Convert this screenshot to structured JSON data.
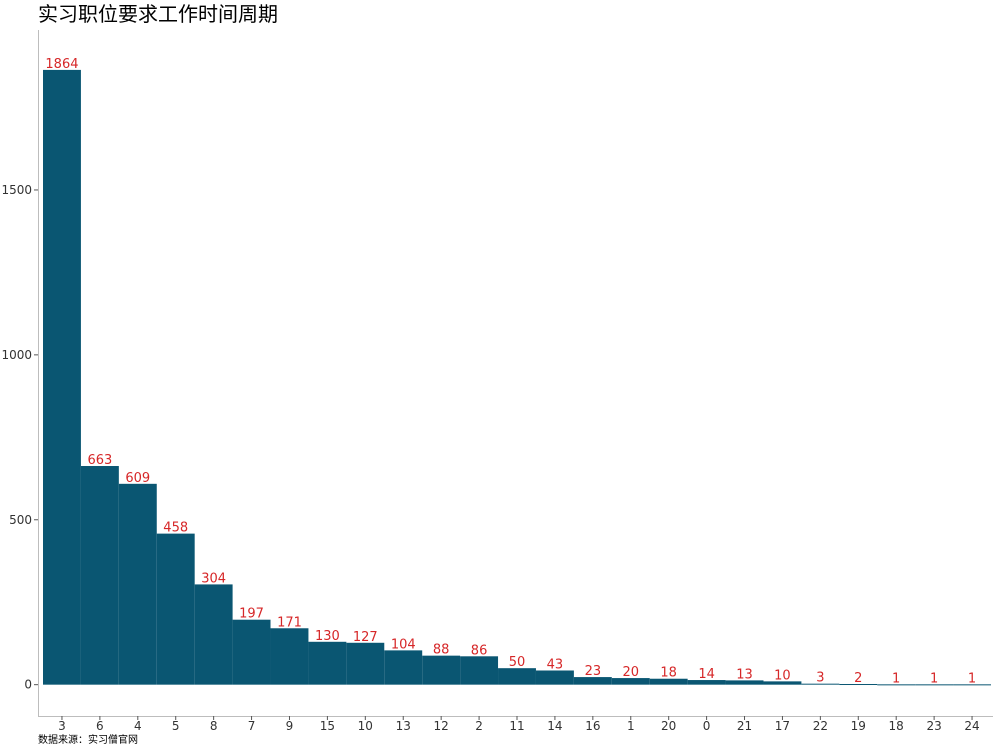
{
  "chart_data": {
    "type": "bar",
    "title": "实习职位要求工作时间周期",
    "xlabel": "",
    "ylabel": "",
    "categories": [
      "3",
      "6",
      "4",
      "5",
      "8",
      "7",
      "9",
      "15",
      "10",
      "13",
      "12",
      "2",
      "11",
      "14",
      "16",
      "1",
      "20",
      "0",
      "21",
      "17",
      "22",
      "19",
      "18",
      "23",
      "24"
    ],
    "values": [
      1864,
      663,
      609,
      458,
      304,
      197,
      171,
      130,
      127,
      104,
      88,
      86,
      50,
      43,
      23,
      20,
      18,
      14,
      13,
      10,
      3,
      2,
      1,
      1,
      1
    ],
    "yticks": [
      0,
      500,
      1000,
      1500
    ],
    "ylim": [
      -95,
      1985
    ],
    "grid": false,
    "legend": "none",
    "bar_color": "#0a5672",
    "label_color": "#d62728",
    "caption": "数据来源：实习僧官网"
  }
}
